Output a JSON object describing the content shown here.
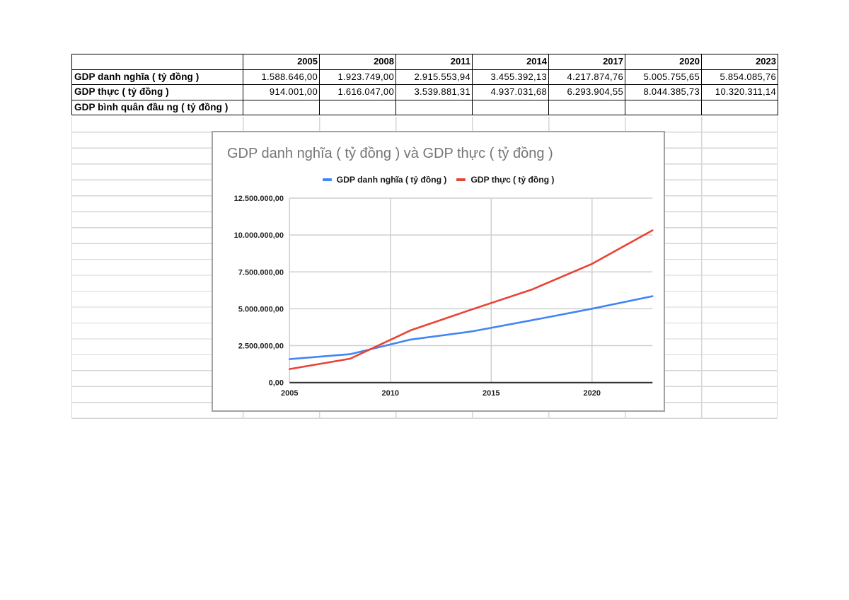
{
  "table": {
    "header": [
      "",
      "2005",
      "2008",
      "2011",
      "2014",
      "2017",
      "2020",
      "2023"
    ],
    "rows": [
      {
        "label": "GDP danh nghĩa ( tỷ đồng )",
        "values": [
          "1.588.646,00",
          "1.923.749,00",
          "2.915.553,94",
          "3.455.392,13",
          "4.217.874,76",
          "5.005.755,65",
          "5.854.085,76"
        ]
      },
      {
        "label": "GDP thực ( tỷ đồng )",
        "values": [
          "914.001,00",
          "1.616.047,00",
          "3.539.881,31",
          "4.937.031,68",
          "6.293.904,55",
          "8.044.385,73",
          "10.320.311,14"
        ]
      },
      {
        "label": "GDP bình quân đầu ng ( tỷ đồng )",
        "values": [
          "",
          "",
          "",
          "",
          "",
          "",
          ""
        ]
      }
    ]
  },
  "chart_data": {
    "type": "line",
    "title": "GDP danh nghĩa ( tỷ đồng ) và GDP thực ( tỷ đồng )",
    "xlabel": "",
    "ylabel": "",
    "x": [
      2005,
      2008,
      2011,
      2014,
      2017,
      2020,
      2023
    ],
    "series": [
      {
        "name": "GDP danh nghĩa ( tỷ đồng )",
        "color": "#4285f4",
        "values": [
          1588646.0,
          1923749.0,
          2915553.94,
          3455392.13,
          4217874.76,
          5005755.65,
          5854085.76
        ]
      },
      {
        "name": "GDP thực ( tỷ đồng )",
        "color": "#ea4335",
        "values": [
          914001.0,
          1616047.0,
          3539881.31,
          4937031.68,
          6293904.55,
          8044385.73,
          10320311.14
        ]
      }
    ],
    "xlim": [
      2005,
      2023
    ],
    "ylim": [
      0,
      12500000
    ],
    "xticks": [
      2005,
      2010,
      2015,
      2020
    ],
    "xtick_labels": [
      "2005",
      "2010",
      "2015",
      "2020"
    ],
    "yticks": [
      0,
      2500000,
      5000000,
      7500000,
      10000000,
      12500000
    ],
    "ytick_labels": [
      "0,00",
      "2.500.000,00",
      "5.000.000,00",
      "7.500.000,00",
      "10.000.000,00",
      "12.500.000,00"
    ],
    "grid": true,
    "legend_position": "top"
  }
}
